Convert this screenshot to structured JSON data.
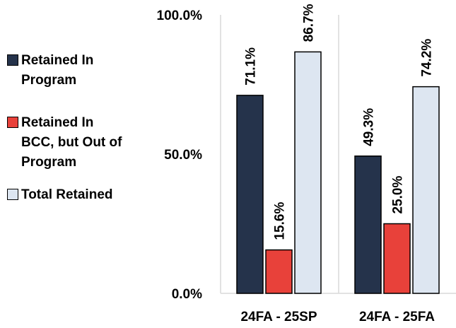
{
  "chart_data": {
    "type": "bar",
    "categories": [
      "24FA - 25SP",
      "24FA - 25FA"
    ],
    "series": [
      {
        "name": "Retained In Program",
        "color": "#25334b",
        "values": [
          71.1,
          49.3
        ],
        "labels": [
          "71.1%",
          "49.3%"
        ]
      },
      {
        "name": "Retained In BCC, but Out of Program",
        "color": "#e8413a",
        "values": [
          15.6,
          25.0
        ],
        "labels": [
          "15.6%",
          "25.0%"
        ]
      },
      {
        "name": "Total Retained",
        "color": "#dde6f1",
        "values": [
          86.7,
          74.2
        ],
        "labels": [
          "86.7%",
          "74.2%"
        ]
      }
    ],
    "yticks": [
      0,
      50,
      100
    ],
    "ytick_labels": [
      "0.0%",
      "50.0%",
      "100.0%"
    ],
    "ylim": [
      0,
      100
    ],
    "legend": "left",
    "grid": false,
    "title": "",
    "xlabel": "",
    "ylabel": ""
  }
}
